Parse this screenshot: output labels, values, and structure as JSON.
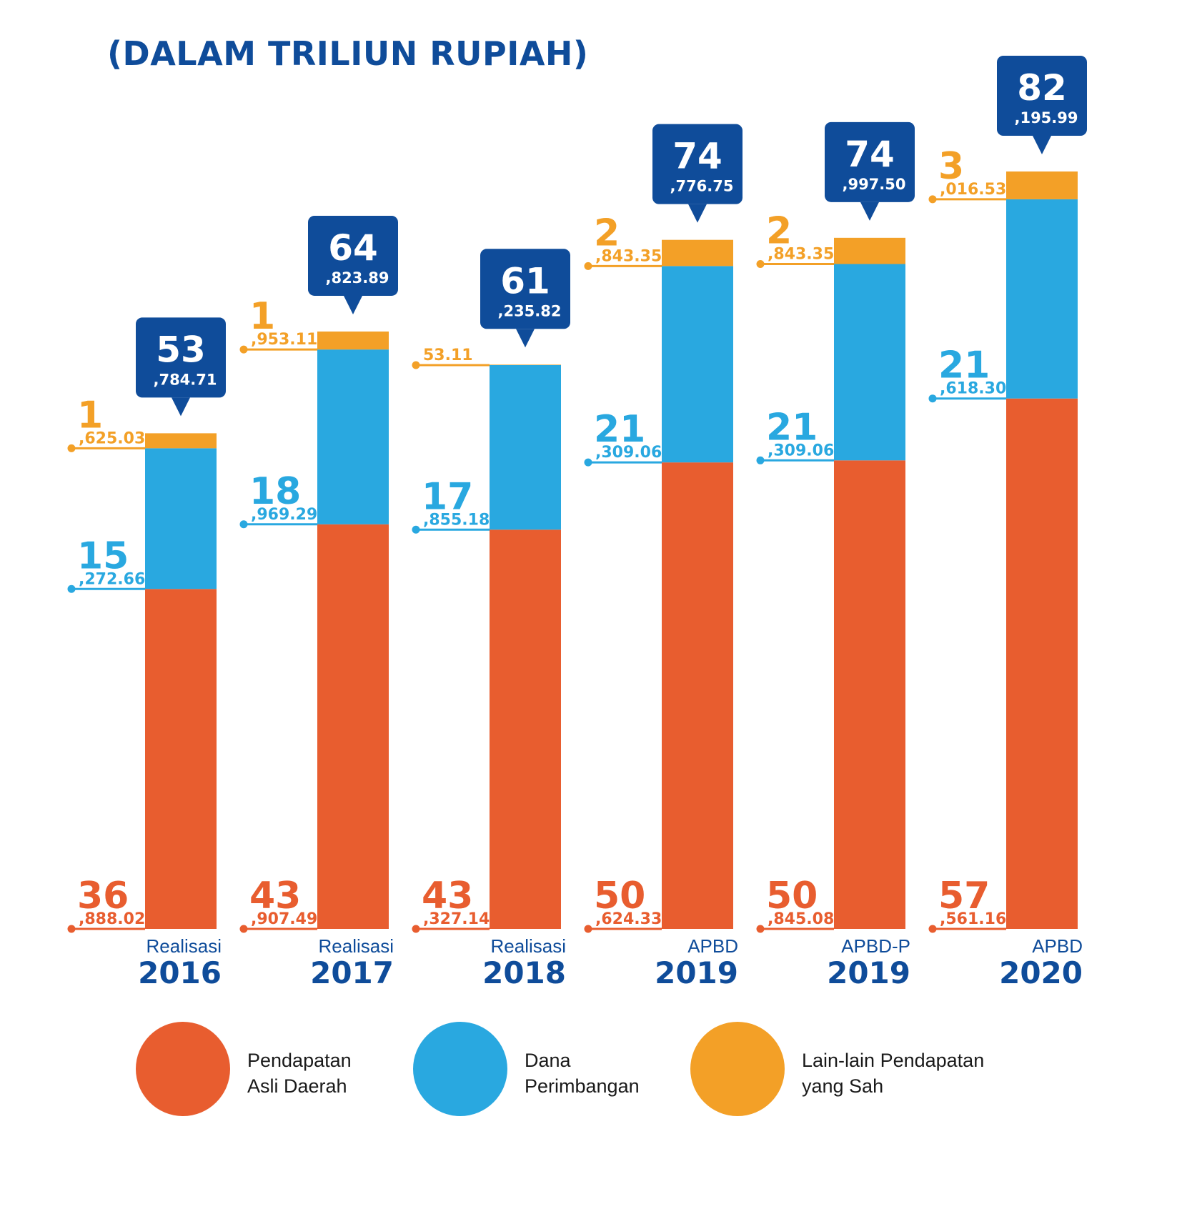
{
  "title": "(DALAM TRILIUN RUPIAH)",
  "colors": {
    "pad": "#e85d2f",
    "dana": "#29a8e0",
    "lain": "#f3a027",
    "total": "#0f4c9a"
  },
  "chart_data": {
    "type": "bar",
    "stacked": true,
    "title": "(DALAM TRILIUN RUPIAH)",
    "categories": [
      {
        "sub": "Realisasi",
        "year": "2016"
      },
      {
        "sub": "Realisasi",
        "year": "2017"
      },
      {
        "sub": "Realisasi",
        "year": "2018"
      },
      {
        "sub": "APBD",
        "year": "2019"
      },
      {
        "sub": "APBD-P",
        "year": "2019"
      },
      {
        "sub": "APBD",
        "year": "2020"
      }
    ],
    "series": [
      {
        "key": "pad",
        "name": "Pendapatan Asli Daerah",
        "values": [
          36888.02,
          43907.49,
          43327.14,
          50624.33,
          50845.08,
          57561.16
        ],
        "labels": [
          [
            "36",
            ",888.02"
          ],
          [
            "43",
            ",907.49"
          ],
          [
            "43",
            ",327.14"
          ],
          [
            "50",
            ",624.33"
          ],
          [
            "50",
            ",845.08"
          ],
          [
            "57",
            ",561.16"
          ]
        ]
      },
      {
        "key": "dana",
        "name": "Dana Perimbangan",
        "values": [
          15272.66,
          18969.29,
          17855.18,
          21309.06,
          21309.06,
          21618.3
        ],
        "labels": [
          [
            "15",
            ",272.66"
          ],
          [
            "18",
            ",969.29"
          ],
          [
            "17",
            ",855.18"
          ],
          [
            "21",
            ",309.06"
          ],
          [
            "21",
            ",309.06"
          ],
          [
            "21",
            ",618.30"
          ]
        ]
      },
      {
        "key": "lain",
        "name": "Lain-lain Pendapatan yang Sah",
        "values": [
          1625.03,
          1953.11,
          53.11,
          2843.35,
          2843.35,
          3016.53
        ],
        "labels": [
          [
            "1",
            ",625.03"
          ],
          [
            "1",
            ",953.11"
          ],
          [
            "",
            "53.11"
          ],
          [
            "2",
            ",843.35"
          ],
          [
            "2",
            ",843.35"
          ],
          [
            "3",
            ",016.53"
          ]
        ]
      }
    ],
    "totals": [
      53784.71,
      64823.89,
      61235.82,
      74776.75,
      74997.5,
      82195.99
    ],
    "total_labels": [
      [
        "53",
        ",784.71"
      ],
      [
        "64",
        ",823.89"
      ],
      [
        "61",
        ",235.82"
      ],
      [
        "74",
        ",776.75"
      ],
      [
        "74",
        ",997.50"
      ],
      [
        "82",
        ",195.99"
      ]
    ],
    "ylim": [
      0,
      82196
    ]
  },
  "legend": [
    {
      "key": "pad",
      "lines": [
        "Pendapatan",
        "Asli Daerah"
      ]
    },
    {
      "key": "dana",
      "lines": [
        "Dana",
        "Perimbangan"
      ]
    },
    {
      "key": "lain",
      "lines": [
        "Lain-lain Pendapatan",
        "yang Sah"
      ]
    }
  ]
}
